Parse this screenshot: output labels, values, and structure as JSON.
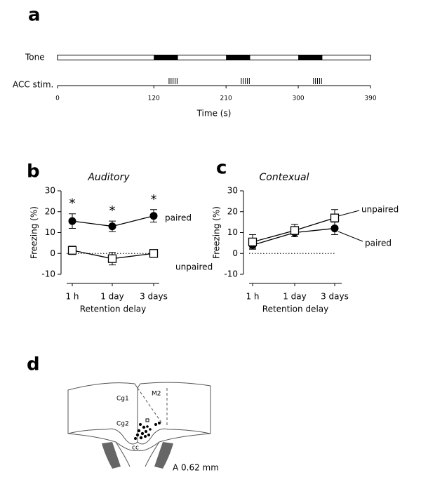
{
  "chart_data": [
    {
      "type": "timeline",
      "panel_label": "a",
      "xlabel": "Time (s)",
      "xlim": [
        0,
        390
      ],
      "xticks": [
        0,
        120,
        210,
        300,
        390
      ],
      "rows": [
        {
          "name": "Tone",
          "on_intervals": [
            [
              120,
              150
            ],
            [
              210,
              240
            ],
            [
              300,
              330
            ]
          ]
        },
        {
          "name": "ACC stim.",
          "pulses": [
            [
              139,
              141.5,
              144,
              146.5,
              149
            ],
            [
              229,
              231.5,
              234,
              236.5,
              239
            ],
            [
              319,
              321.5,
              324,
              326.5,
              329
            ]
          ]
        }
      ]
    },
    {
      "type": "line",
      "panel_label": "b",
      "title": "Auditory",
      "ylabel": "Freezing (%)",
      "xlabel": "Retention delay",
      "categories": [
        "1 h",
        "1 day",
        "3 days"
      ],
      "ylim": [
        -10,
        30
      ],
      "yticks": [
        -10,
        0,
        10,
        20,
        30
      ],
      "reference_line": 0,
      "asterisks": [
        "*",
        "*",
        "*"
      ],
      "series": [
        {
          "name": "paired",
          "color": "#000000",
          "marker": "filled-circle",
          "values": [
            15.5,
            13,
            18
          ],
          "errors": [
            3.5,
            2.5,
            3
          ]
        },
        {
          "name": "unpaired",
          "color": "#000000",
          "marker": "open-square",
          "values": [
            1.5,
            -2.5,
            0
          ],
          "errors": [
            2,
            3,
            1
          ]
        }
      ]
    },
    {
      "type": "line",
      "panel_label": "c",
      "title": "Contexual",
      "ylabel": "Freezing (%)",
      "xlabel": "Retention delay",
      "categories": [
        "1 h",
        "1 day",
        "3 days"
      ],
      "ylim": [
        -10,
        30
      ],
      "yticks": [
        -10,
        0,
        10,
        20,
        30
      ],
      "reference_line": 0,
      "series": [
        {
          "name": "paired",
          "color": "#000000",
          "marker": "filled-circle",
          "values": [
            4,
            10,
            12
          ],
          "errors": [
            1.5,
            2,
            3
          ]
        },
        {
          "name": "unpaired",
          "color": "#000000",
          "marker": "open-square",
          "values": [
            5.5,
            11,
            17
          ],
          "errors": [
            3.5,
            3,
            4
          ]
        }
      ]
    }
  ],
  "panel_d": {
    "panel_label": "d",
    "regions": [
      "Cg1",
      "M2",
      "Cg2",
      "cc"
    ],
    "caption": "A 0.62 mm"
  }
}
